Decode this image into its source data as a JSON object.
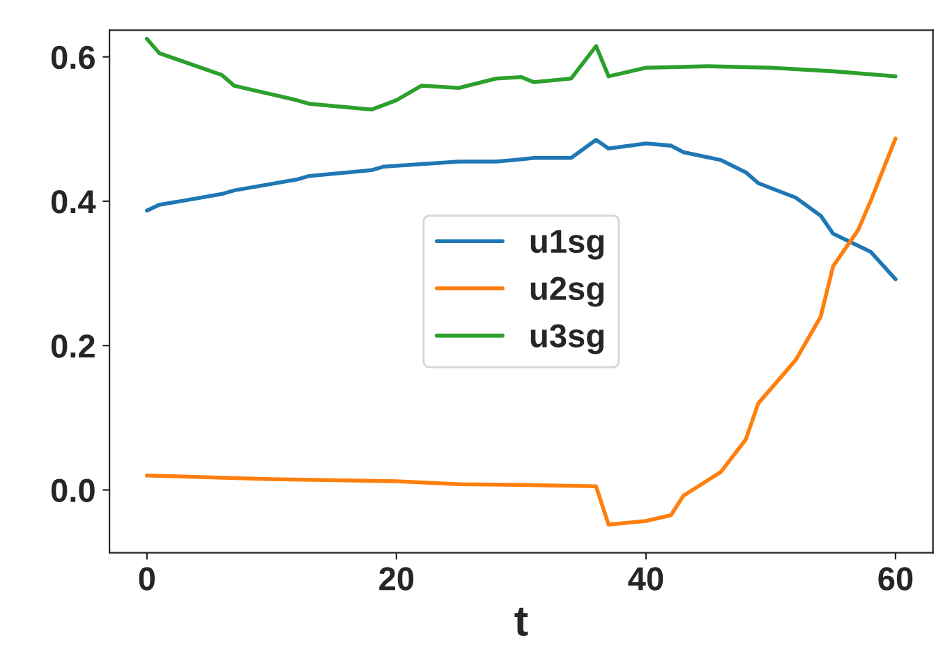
{
  "chart_data": {
    "type": "line",
    "xlabel": "t",
    "xlim": [
      -3,
      63
    ],
    "ylim": [
      -0.087,
      0.637
    ],
    "xticks": [
      0,
      20,
      40,
      60
    ],
    "yticks": [
      {
        "value": 0,
        "label": "0.0"
      },
      0.2,
      0.4,
      0.6
    ],
    "legend": "center",
    "grid": false,
    "series": [
      {
        "name": "u1sg",
        "color": "#1f77b4",
        "x": [
          0,
          1,
          6,
          7,
          12,
          13,
          18,
          19,
          25,
          28,
          30,
          31,
          34,
          36,
          37,
          40,
          42,
          43,
          46,
          48,
          49,
          52,
          54,
          55,
          58,
          60
        ],
        "values": [
          0.387,
          0.395,
          0.41,
          0.415,
          0.43,
          0.435,
          0.443,
          0.448,
          0.455,
          0.455,
          0.458,
          0.46,
          0.46,
          0.485,
          0.473,
          0.48,
          0.477,
          0.468,
          0.457,
          0.44,
          0.425,
          0.405,
          0.38,
          0.355,
          0.33,
          0.292
        ]
      },
      {
        "name": "u2sg",
        "color": "#ff7f0e",
        "x": [
          0,
          10,
          20,
          25,
          30,
          36,
          37,
          40,
          42,
          43,
          46,
          48,
          49,
          52,
          54,
          55,
          57,
          58,
          60
        ],
        "values": [
          0.02,
          0.015,
          0.012,
          0.008,
          0.007,
          0.005,
          -0.048,
          -0.043,
          -0.035,
          -0.008,
          0.025,
          0.07,
          0.12,
          0.18,
          0.24,
          0.31,
          0.36,
          0.4,
          0.487
        ]
      },
      {
        "name": "u3sg",
        "color": "#2ca02c",
        "x": [
          0,
          1,
          6,
          7,
          12,
          13,
          18,
          20,
          22,
          25,
          28,
          30,
          31,
          34,
          36,
          37,
          40,
          45,
          50,
          55,
          60
        ],
        "values": [
          0.625,
          0.605,
          0.575,
          0.56,
          0.54,
          0.535,
          0.527,
          0.54,
          0.56,
          0.557,
          0.57,
          0.572,
          0.565,
          0.57,
          0.615,
          0.573,
          0.585,
          0.587,
          0.585,
          0.58,
          0.573
        ]
      }
    ]
  }
}
